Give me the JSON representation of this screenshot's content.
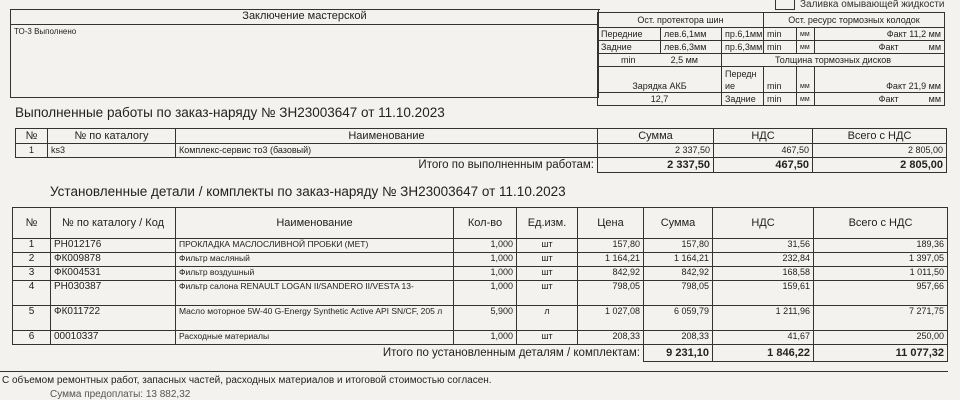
{
  "top_checkbox_label": "Заливка омывающей жидкости",
  "workshop": {
    "title": "Заключение мастерской",
    "text": "ТО-3 Выполнено"
  },
  "inspection": {
    "tread_title": "Ост. протектора шин",
    "pads_title": "Ост. ресурс тормозных колодок",
    "front": {
      "label": "Передние",
      "left": "лев.6,1мм",
      "right": "пр.6,1мм",
      "min": "min",
      "unit": "мм",
      "fact": "Факт 11,2 мм"
    },
    "rear": {
      "label": "Задние",
      "left": "лев.6,3мм",
      "right": "пр.6,3мм",
      "min": "min",
      "unit": "мм",
      "fact": "Факт",
      "fact_unit": "мм"
    },
    "tread_min_label": "min",
    "tread_min_value": "2,5  мм",
    "discs_title": "Толщина тормозных дисков",
    "battery_label": "Зарядка АКБ",
    "battery_value": "12,7",
    "disc_front": {
      "label": "Передние",
      "min": "min",
      "unit": "мм",
      "fact": "Факт 21,9 мм"
    },
    "disc_rear": {
      "label": "Задние",
      "min": "min",
      "unit": "мм",
      "fact": "Факт",
      "fact_unit": "мм"
    }
  },
  "works": {
    "heading": "Выполненные работы по заказ-наряду №  ЗН23003647 от 11.10.2023",
    "columns": [
      "№",
      "№ по каталогу",
      "Наименование",
      "Сумма",
      "НДС",
      "Всего с НДС"
    ],
    "rows": [
      [
        "1",
        "ks3",
        "Комплекс-сервис то3 (базовый)",
        "2 337,50",
        "467,50",
        "2 805,00"
      ]
    ],
    "total_label": "Итого по выполненным работам:",
    "total": [
      "2 337,50",
      "467,50",
      "2 805,00"
    ]
  },
  "parts": {
    "heading": "Установленные детали / комплекты по заказ-наряду №  ЗН23003647 от 11.10.2023",
    "columns": [
      "№",
      "№ по каталогу / Код",
      "Наименование",
      "Кол-во",
      "Ед.изм.",
      "Цена",
      "Сумма",
      "НДС",
      "Всего с НДС"
    ],
    "rows": [
      [
        "1",
        "РН012176",
        "ПРОКЛАДКА МАСЛОСЛИВНОЙ ПРОБКИ (МЕТ)",
        "1,000",
        "шт",
        "157,80",
        "157,80",
        "31,56",
        "189,36"
      ],
      [
        "2",
        "ФК009878",
        "Фильтр масляный",
        "1,000",
        "шт",
        "1 164,21",
        "1 164,21",
        "232,84",
        "1 397,05"
      ],
      [
        "3",
        "ФК004531",
        "Фильтр воздушный",
        "1,000",
        "шт",
        "842,92",
        "842,92",
        "168,58",
        "1 011,50"
      ],
      [
        "4",
        "РН030387",
        "Фильтр салона RENAULT LOGAN II/SANDERO II/VESTA 13-",
        "1,000",
        "шт",
        "798,05",
        "798,05",
        "159,61",
        "957,66"
      ],
      [
        "5",
        "ФК011722",
        "Масло моторное 5W-40 G-Energy Synthetic Active API SN/CF, 205 л",
        "5,900",
        "л",
        "1 027,08",
        "6 059,79",
        "1 211,96",
        "7 271,75"
      ],
      [
        "6",
        "00010337",
        "Расходные материалы",
        "1,000",
        "шт",
        "208,33",
        "208,33",
        "41,67",
        "250,00"
      ]
    ],
    "total_label": "Итого по установленным деталям / комплектам:",
    "total": [
      "9 231,10",
      "1 846,22",
      "11 077,32"
    ]
  },
  "agreement": "С объемом ремонтных работ, запасных частей, расходных материалов и итоговой стоимостью согласен.",
  "prepayment": "Сумма предоплаты: 13 882,32"
}
